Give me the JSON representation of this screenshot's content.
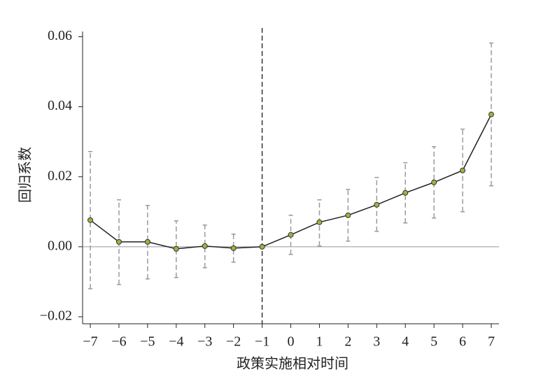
{
  "chart_data": {
    "type": "line",
    "x_label": "政策实施相对时间",
    "y_label": "回归系数",
    "x": [
      -7,
      -6,
      -5,
      -4,
      -3,
      -2,
      -1,
      0,
      1,
      2,
      3,
      4,
      5,
      6,
      7
    ],
    "series": [
      {
        "color": "#222222",
        "marker_color": "#a3b13c",
        "ci_color": "#9a9a9a",
        "values": [
          0.0076,
          0.0014,
          0.0014,
          -0.0006,
          0.0002,
          -0.0004,
          0,
          0.0034,
          0.007,
          0.009,
          0.012,
          0.0154,
          0.0184,
          0.0218,
          0.0378
        ],
        "ci_lower": [
          -0.012,
          -0.0108,
          -0.0092,
          -0.0088,
          -0.006,
          -0.0044,
          null,
          -0.0022,
          0.0002,
          0.0016,
          0.0044,
          0.0068,
          0.0082,
          0.01,
          0.0174
        ],
        "ci_upper": [
          0.0272,
          0.0134,
          0.0118,
          0.0074,
          0.0062,
          0.0036,
          null,
          0.009,
          0.0134,
          0.0164,
          0.0198,
          0.024,
          0.0286,
          0.0336,
          0.0582
        ]
      }
    ],
    "xlim": [
      -7.27,
      7.27
    ],
    "ylim": [
      -0.022,
      0.0615
    ],
    "xticks": [
      {
        "value": -7,
        "label": "−7"
      },
      {
        "value": -6,
        "label": "−6"
      },
      {
        "value": -5,
        "label": "−5"
      },
      {
        "value": -4,
        "label": "−4"
      },
      {
        "value": -3,
        "label": "−3"
      },
      {
        "value": -2,
        "label": "−2"
      },
      {
        "value": -1,
        "label": "−1"
      },
      0,
      1,
      2,
      3,
      4,
      5,
      6,
      7
    ],
    "yticks": [
      {
        "value": -0.02,
        "label": "−0.02"
      },
      {
        "value": 0,
        "label": "0.00"
      },
      0.02,
      0.04,
      0.06
    ],
    "zero_line": 0,
    "event_line": -1
  }
}
